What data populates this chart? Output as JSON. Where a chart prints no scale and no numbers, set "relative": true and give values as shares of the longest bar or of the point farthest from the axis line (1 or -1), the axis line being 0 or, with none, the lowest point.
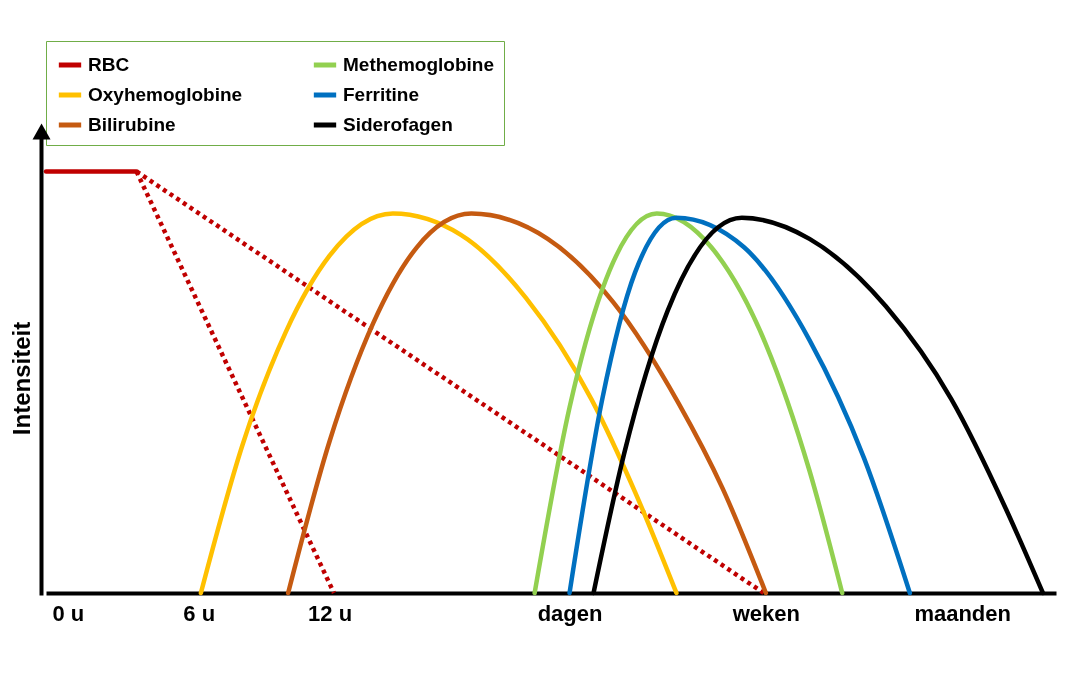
{
  "chart_data": {
    "type": "line",
    "ylabel": "Intensiteit",
    "relative": true,
    "xlim": [
      -1,
      45.3
    ],
    "xticks": [
      {
        "value": 0,
        "label": "0 u"
      },
      {
        "value": 6,
        "label": "6 u"
      },
      {
        "value": 12,
        "label": "12 u"
      },
      {
        "value": 23,
        "label": "dagen"
      },
      {
        "value": 32,
        "label": "weken"
      },
      {
        "value": 41,
        "label": "maanden"
      }
    ],
    "legend": "top",
    "grid": false,
    "marker": "none",
    "series": [
      {
        "name": "RBC",
        "color": "#c00000",
        "x": [
          -1,
          3.15
        ],
        "values": [
          1,
          1
        ]
      },
      {
        "color": "#c00000",
        "line_style": "dotted",
        "x": [
          3.15,
          12.2
        ],
        "values": [
          1,
          0
        ]
      },
      {
        "color": "#c00000",
        "line_style": "dotted",
        "x": [
          3.15,
          31.9
        ],
        "values": [
          1,
          0
        ]
      },
      {
        "name": "Oxyhemoglobine",
        "color": "#ffc000",
        "x": [
          6.1,
          8,
          10,
          12,
          14.9,
          18,
          21,
          24,
          26,
          27.9
        ],
        "values": [
          0,
          0.35,
          0.62,
          0.8,
          0.9,
          0.85,
          0.7,
          0.46,
          0.24,
          0
        ]
      },
      {
        "name": "Bilirubine",
        "color": "#c55a11",
        "x": [
          10.1,
          12,
          14,
          16,
          18.5,
          22,
          25,
          28,
          30,
          32
        ],
        "values": [
          0,
          0.36,
          0.64,
          0.82,
          0.9,
          0.84,
          0.69,
          0.45,
          0.25,
          0
        ]
      },
      {
        "name": "Methemoglobine",
        "color": "#92d050",
        "x": [
          21.4,
          23,
          24.5,
          27,
          29.5,
          32,
          34,
          35.5
        ],
        "values": [
          0,
          0.44,
          0.72,
          0.9,
          0.82,
          0.59,
          0.29,
          0
        ]
      },
      {
        "name": "Ferritine",
        "color": "#0070c0",
        "x": [
          23,
          24.5,
          26,
          27.9,
          31,
          34,
          36.5,
          38.6
        ],
        "values": [
          0,
          0.46,
          0.76,
          0.89,
          0.82,
          0.6,
          0.32,
          0
        ]
      },
      {
        "name": "Siderofagen",
        "color": "#000000",
        "x": [
          24.1,
          25.5,
          27.5,
          30.9,
          34,
          37.5,
          40.5,
          43,
          44.7
        ],
        "values": [
          0,
          0.33,
          0.67,
          0.89,
          0.84,
          0.68,
          0.46,
          0.2,
          0
        ]
      }
    ]
  }
}
